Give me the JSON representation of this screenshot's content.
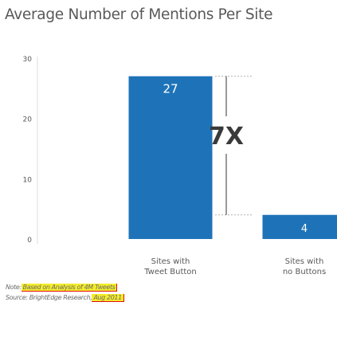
{
  "chart_data": {
    "type": "bar",
    "title": "Average Number of Mentions Per Site",
    "categories": [
      "Sites with Tweet Button",
      "Sites with no Buttons"
    ],
    "category_lines": [
      [
        "Sites with",
        "Tweet Button"
      ],
      [
        "Sites with",
        "no Buttons"
      ]
    ],
    "values": [
      27,
      4
    ],
    "value_labels": [
      "27",
      "4"
    ],
    "ylim": [
      0,
      30
    ],
    "yticks": [
      0,
      10,
      20,
      30
    ],
    "ytick_labels": [
      "0",
      "10",
      "20",
      "30"
    ],
    "annotation": "7X",
    "colors": {
      "bar": "#1e73b8",
      "bar_label": "#ffffff",
      "text": "#595959",
      "annotation": "#3a3a3a"
    }
  },
  "notes": {
    "note_label": "Note:",
    "note_text": "Based on Analysis of 4M Tweets",
    "source_label": "Source: BrightEdge Research,",
    "source_date": "Aug 2011"
  }
}
